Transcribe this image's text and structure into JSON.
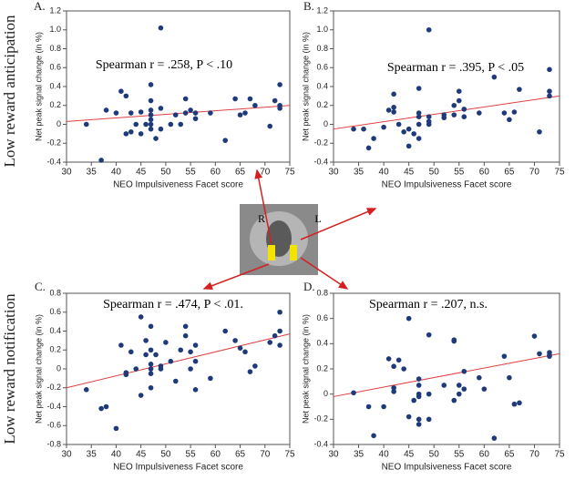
{
  "row_labels": [
    "Low reward anticipation",
    "Low reward notification"
  ],
  "brain_labels": [
    "R",
    "L"
  ],
  "chart_data": [
    {
      "type": "scatter",
      "label": "A.",
      "annotation": "Spearman r = .258, P < .10",
      "x_label": "NEO Impulsiveness Facet score",
      "y_label": "Net peak signal change (in %)",
      "color": "#1f3a7a",
      "trend_color": "#e04040",
      "xlim": [
        30,
        75
      ],
      "xticks": [
        30,
        35,
        40,
        45,
        50,
        55,
        60,
        65,
        70,
        75
      ],
      "ylim": [
        -0.4,
        1.2
      ],
      "yticks": [
        -0.4,
        -0.2,
        0,
        0.2,
        0.4,
        0.6,
        0.8,
        {
          "value": 1,
          "label": "1.0"
        },
        1.2
      ],
      "trend": {
        "x": [
          30,
          75
        ],
        "y": [
          0.03,
          0.2
        ]
      },
      "x": [
        34,
        37,
        38,
        40,
        41,
        42,
        42,
        43,
        43,
        44,
        45,
        45,
        46,
        47,
        47,
        47,
        47,
        47,
        47,
        47,
        48,
        49,
        49,
        49,
        51,
        52,
        53,
        54,
        54,
        55,
        56,
        56,
        59,
        62,
        64,
        65,
        66,
        67,
        68,
        71,
        72,
        73,
        73,
        73
      ],
      "y": [
        0.0,
        -0.38,
        0.15,
        0.12,
        0.35,
        0.3,
        -0.1,
        0.12,
        -0.08,
        0.0,
        0.13,
        -0.1,
        0.0,
        0.42,
        0.25,
        0.15,
        0.1,
        0.05,
        0.0,
        -0.05,
        -0.15,
        1.02,
        0.17,
        -0.05,
        0.0,
        0.1,
        0.0,
        0.27,
        0.12,
        0.15,
        0.12,
        0.06,
        0.12,
        -0.17,
        0.27,
        0.1,
        0.12,
        0.27,
        0.2,
        -0.02,
        0.25,
        0.42,
        0.2,
        0.17
      ]
    },
    {
      "type": "scatter",
      "label": "B.",
      "annotation": "Spearman r = .395, P < .05",
      "x_label": "NEO Impulsiveness Facet score",
      "y_label": "Net peak signal change (in %)",
      "color": "#1f3a7a",
      "trend_color": "#e04040",
      "xlim": [
        30,
        75
      ],
      "xticks": [
        30,
        35,
        40,
        45,
        50,
        55,
        60,
        65,
        70,
        75
      ],
      "ylim": [
        -0.4,
        1.2
      ],
      "yticks": [
        -0.4,
        -0.2,
        0,
        0.2,
        0.4,
        0.6,
        0.8,
        {
          "value": 1,
          "label": "1.0"
        },
        1.2
      ],
      "trend": {
        "x": [
          30,
          75
        ],
        "y": [
          -0.05,
          0.3
        ]
      },
      "x": [
        34,
        36,
        37,
        38,
        40,
        41,
        42,
        42,
        42,
        43,
        44,
        45,
        45,
        46,
        47,
        47,
        47,
        47,
        47,
        49,
        49,
        49,
        49,
        52,
        52,
        54,
        54,
        55,
        55,
        56,
        56,
        59,
        62,
        64,
        65,
        66,
        67,
        71,
        73,
        73,
        73
      ],
      "y": [
        -0.05,
        -0.05,
        -0.25,
        -0.15,
        -0.03,
        0.15,
        0.32,
        0.18,
        0.13,
        0.0,
        -0.08,
        -0.05,
        -0.23,
        -0.1,
        0.38,
        0.12,
        0.08,
        0.0,
        -0.15,
        1.0,
        0.08,
        0.03,
        0.0,
        0.1,
        0.07,
        0.2,
        0.1,
        0.35,
        0.25,
        0.16,
        0.08,
        0.12,
        0.5,
        0.12,
        0.05,
        0.13,
        0.37,
        -0.08,
        0.58,
        0.35,
        0.3
      ]
    },
    {
      "type": "scatter",
      "label": "C.",
      "annotation": "Spearman r = .474, P < .01.",
      "x_label": "NEO Impulsiveness Facet score",
      "y_label": "Net peak signal change (in %)",
      "color": "#1f3a7a",
      "trend_color": "#e04040",
      "xlim": [
        30,
        75
      ],
      "xticks": [
        30,
        35,
        40,
        45,
        50,
        55,
        60,
        65,
        70,
        75
      ],
      "ylim": [
        -0.8,
        0.8
      ],
      "yticks": [
        -0.8,
        -0.6,
        -0.4,
        -0.2,
        0,
        0.2,
        0.4,
        0.6,
        0.8
      ],
      "trend": {
        "x": [
          30,
          75
        ],
        "y": [
          -0.2,
          0.37
        ]
      },
      "x": [
        34,
        37,
        38,
        40,
        41,
        42,
        42,
        43,
        44,
        45,
        45,
        46,
        46,
        47,
        47,
        47,
        47,
        47,
        47,
        48,
        49,
        49,
        50,
        51,
        52,
        53,
        54,
        54,
        55,
        55,
        56,
        56,
        56,
        59,
        62,
        64,
        65,
        66,
        67,
        68,
        71,
        72,
        73,
        73,
        73
      ],
      "y": [
        -0.22,
        -0.42,
        -0.4,
        -0.63,
        0.25,
        -0.04,
        -0.06,
        0.18,
        0.0,
        0.55,
        -0.28,
        0.3,
        0.15,
        0.45,
        0.2,
        0.05,
        0.0,
        -0.05,
        -0.2,
        0.15,
        0.03,
        0.0,
        0.28,
        0.08,
        -0.13,
        0.2,
        0.45,
        0.35,
        0.18,
        0.0,
        -0.22,
        0.08,
        0.25,
        -0.1,
        0.4,
        0.3,
        0.22,
        0.18,
        -0.03,
        0.03,
        0.28,
        0.35,
        0.6,
        0.4,
        0.25
      ]
    },
    {
      "type": "scatter",
      "label": "D.",
      "annotation": "Spearman r = .207, n.s.",
      "x_label": "NEO Impulsiveness Facet score",
      "y_label": "Net peak signal change (in %)",
      "color": "#1f3a7a",
      "trend_color": "#e04040",
      "xlim": [
        30,
        75
      ],
      "xticks": [
        30,
        35,
        40,
        45,
        50,
        55,
        60,
        65,
        70,
        75
      ],
      "ylim": [
        -0.4,
        0.8
      ],
      "yticks": [
        -0.4,
        -0.2,
        0,
        0.2,
        0.4,
        0.6,
        0.8
      ],
      "trend": {
        "x": [
          30,
          75
        ],
        "y": [
          -0.02,
          0.32
        ]
      },
      "x": [
        34,
        37,
        38,
        40,
        41,
        42,
        42,
        42,
        43,
        44,
        45,
        45,
        46,
        47,
        47,
        47,
        47,
        47,
        47,
        49,
        49,
        49,
        52,
        54,
        54,
        54,
        55,
        55,
        56,
        56,
        59,
        60,
        62,
        64,
        65,
        66,
        67,
        70,
        71,
        73,
        73,
        73
      ],
      "y": [
        0.01,
        -0.1,
        -0.33,
        -0.1,
        0.28,
        0.22,
        0.05,
        0.02,
        0.27,
        0.2,
        0.6,
        -0.18,
        -0.05,
        0.12,
        0.07,
        0.0,
        -0.02,
        -0.2,
        -0.24,
        0.47,
        0.0,
        -0.2,
        0.07,
        0.43,
        0.42,
        -0.05,
        0.07,
        0.0,
        0.18,
        0.04,
        0.13,
        0.04,
        -0.35,
        0.3,
        0.13,
        -0.08,
        -0.07,
        0.46,
        0.32,
        0.33,
        0.31,
        0.3
      ]
    }
  ]
}
